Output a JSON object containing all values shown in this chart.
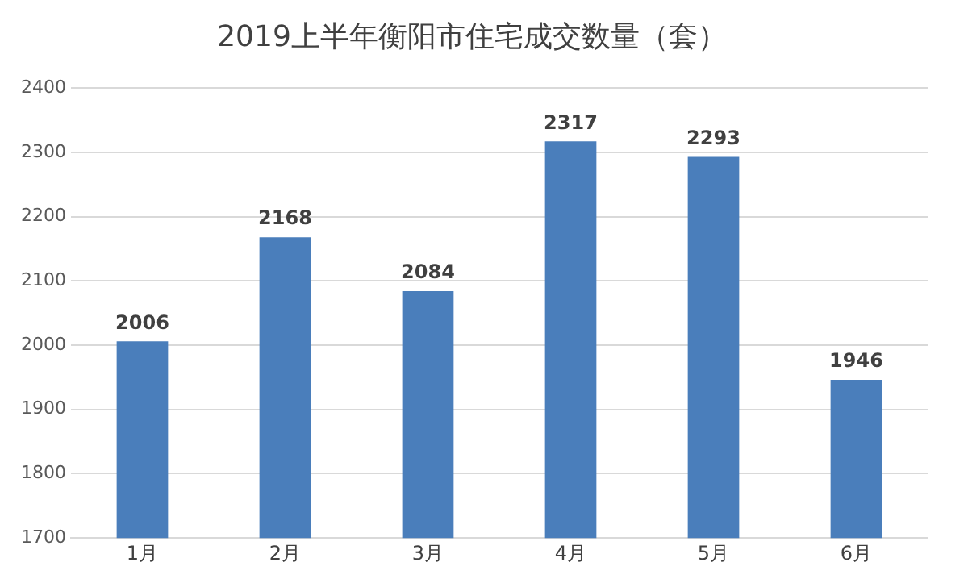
{
  "chart_data": {
    "type": "bar",
    "title": "2019上半年衡阳市住宅成交数量（套）",
    "categories": [
      "1月",
      "2月",
      "3月",
      "4月",
      "5月",
      "6月"
    ],
    "values": [
      2006,
      2168,
      2084,
      2317,
      2293,
      1946
    ],
    "color": "#4a7ebb",
    "ylim": [
      1700,
      2400
    ],
    "yticks": [
      1700,
      1800,
      1900,
      2000,
      2100,
      2200,
      2300,
      2400
    ],
    "grid": "y",
    "data_labels": true
  }
}
